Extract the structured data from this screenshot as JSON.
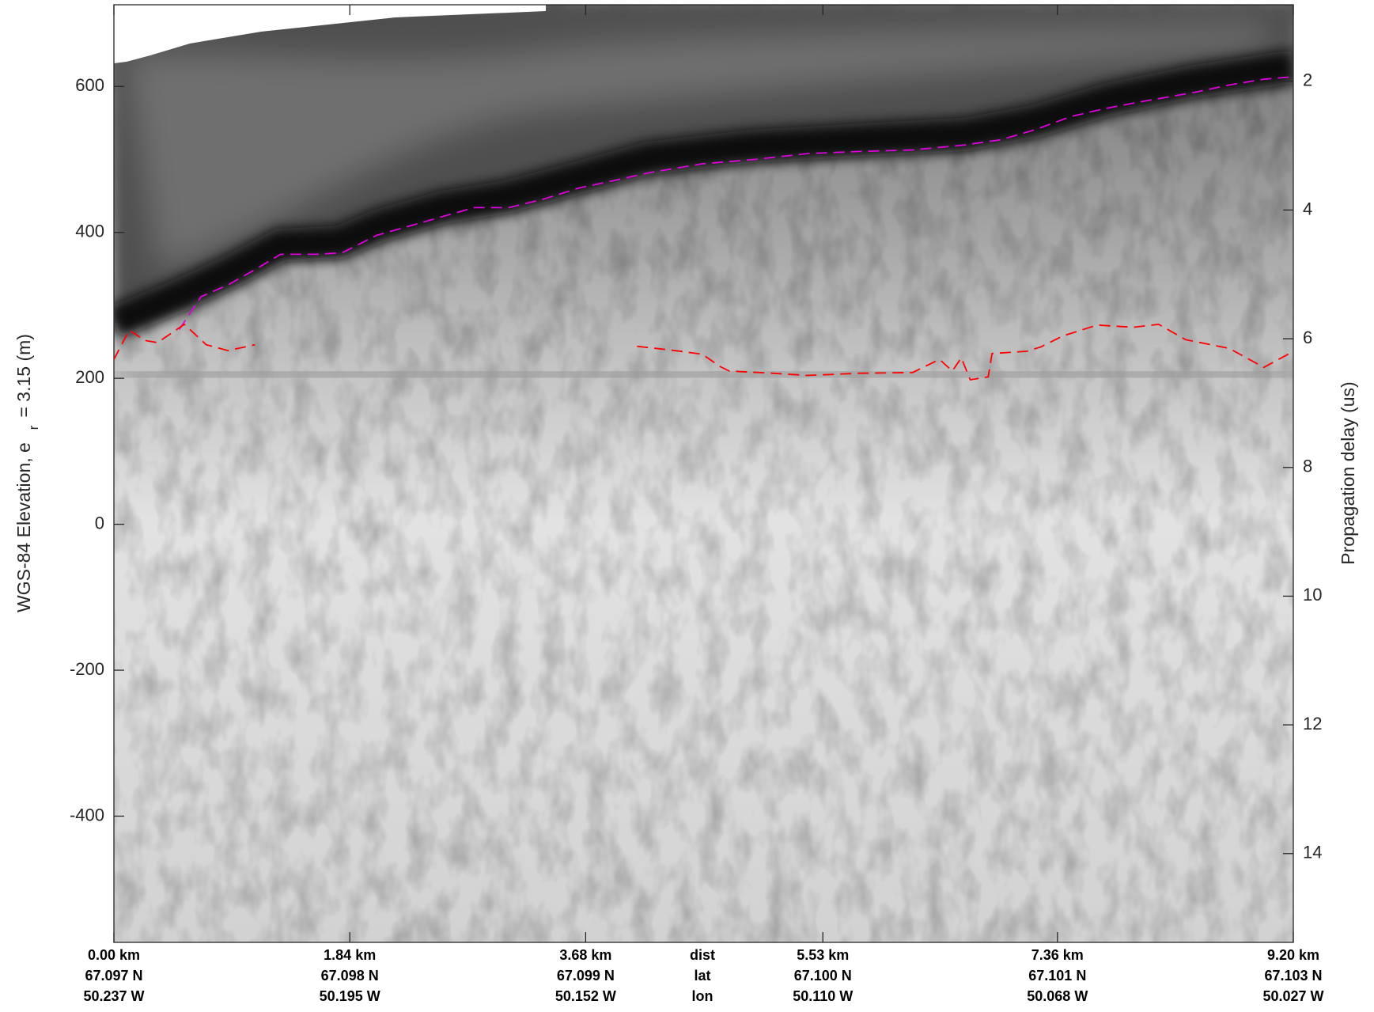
{
  "chart_data": {
    "type": "echogram",
    "ylabel": {
      "text": "WGS-84 Elevation, e",
      "subscript": "r",
      "suffix": "= 3.15 (m)"
    },
    "y2label": "Propagation delay (us)",
    "xlim": [
      0,
      9.2
    ],
    "xticks": [
      {
        "value": 0,
        "label": "0.00 km"
      },
      {
        "value": 1.84,
        "label": "1.84 km"
      },
      {
        "value": 3.68,
        "label": "3.68 km"
      },
      {
        "value": 5.53,
        "label": "5.53 km"
      },
      {
        "value": 7.36,
        "label": "7.36 km"
      },
      {
        "value": 9.2,
        "label": "9.20 km"
      }
    ],
    "lat_labels": [
      "67.097 N",
      "67.098 N",
      "67.099 N",
      "67.100 N",
      "67.101 N",
      "67.103 N"
    ],
    "lon_labels": [
      "50.237 W",
      "50.195 W",
      "50.152 W",
      "50.110 W",
      "50.068 W",
      "50.027 W"
    ],
    "row_names": [
      "dist",
      "lat",
      "lon"
    ],
    "ylim": [
      -573,
      712
    ],
    "yticks": [
      -400,
      -200,
      0,
      200,
      400,
      600
    ],
    "y2lim": [
      15.38,
      0.81
    ],
    "y2ticks": [
      2,
      4,
      6,
      8,
      10,
      12,
      14
    ],
    "grid": false,
    "series": [
      {
        "name": "surface",
        "color": "#e000e0",
        "x": [
          0.51,
          0.68,
          0.89,
          1.1,
          1.3,
          1.58,
          1.78,
          2.05,
          2.33,
          2.53,
          2.81,
          3.08,
          3.36,
          3.63,
          3.9,
          4.18,
          4.59,
          5.0,
          5.41,
          5.82,
          6.23,
          6.64,
          6.92,
          7.19,
          7.47,
          7.74,
          8.01,
          8.43,
          8.7,
          8.97,
          9.18
        ],
        "values": [
          267,
          312,
          328,
          349,
          370,
          370,
          372,
          396,
          410,
          420,
          434,
          434,
          446,
          461,
          471,
          482,
          494,
          500,
          508,
          511,
          513,
          520,
          527,
          541,
          559,
          570,
          579,
          592,
          602,
          610,
          613
        ]
      },
      {
        "name": "bottom",
        "color": "#ff0000",
        "x": [
          0.0,
          0.12,
          0.24,
          0.34,
          0.55,
          0.72,
          0.89,
          1.1,
          2.5,
          4.08,
          4.38,
          4.59,
          4.73,
          4.8,
          5.14,
          5.41,
          5.82,
          6.23,
          6.44,
          6.54,
          6.61,
          6.68,
          6.82,
          6.85,
          7.12,
          7.23,
          7.4,
          7.67,
          7.95,
          8.15,
          8.36,
          8.7,
          8.97,
          9.18
        ],
        "values": [
          226,
          266,
          252,
          249,
          274,
          246,
          238,
          246,
          null,
          244,
          238,
          233,
          216,
          210,
          207,
          204,
          207,
          208,
          226,
          210,
          228,
          198,
          202,
          234,
          237,
          243,
          258,
          273,
          270,
          274,
          253,
          241,
          215,
          235
        ]
      }
    ]
  }
}
